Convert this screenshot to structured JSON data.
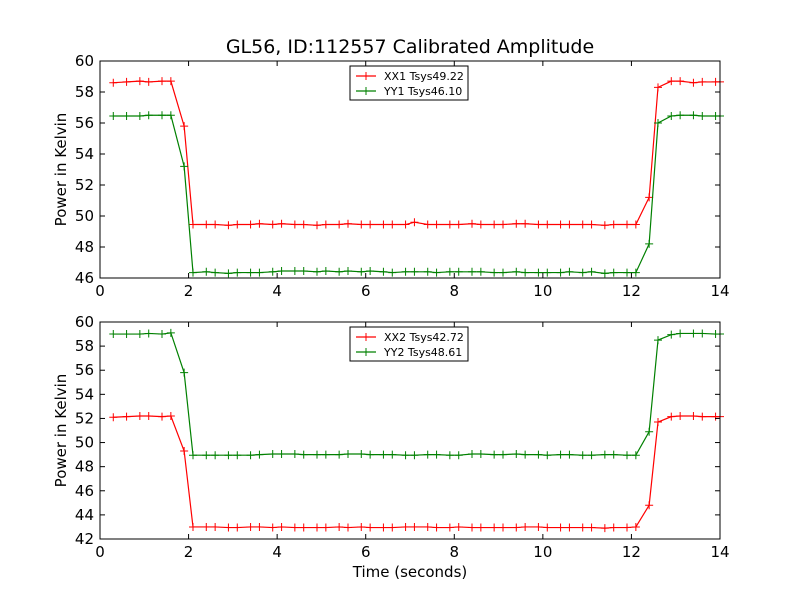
{
  "figure_title": "GL56, ID:112557 Calibrated Amplitude",
  "chart_data": [
    {
      "type": "line",
      "title": "GL56, ID:112557 Calibrated Amplitude",
      "xlabel": "",
      "ylabel": "Power in Kelvin",
      "xlim": [
        0,
        14
      ],
      "ylim": [
        46,
        60
      ],
      "xticks": [
        "0",
        "2",
        "4",
        "6",
        "8",
        "10",
        "12",
        "14"
      ],
      "yticks": [
        "46",
        "48",
        "50",
        "52",
        "54",
        "56",
        "58",
        "60"
      ],
      "grid": false,
      "legend_position": "upper-center",
      "x": [
        0.3,
        0.6,
        0.9,
        1.1,
        1.4,
        1.6,
        1.9,
        2.1,
        2.4,
        2.6,
        2.9,
        3.1,
        3.4,
        3.6,
        3.9,
        4.1,
        4.4,
        4.6,
        4.9,
        5.1,
        5.4,
        5.6,
        5.9,
        6.1,
        6.4,
        6.6,
        6.9,
        7.1,
        7.4,
        7.6,
        7.9,
        8.1,
        8.4,
        8.6,
        8.9,
        9.1,
        9.4,
        9.6,
        9.9,
        10.1,
        10.4,
        10.6,
        10.9,
        11.1,
        11.4,
        11.6,
        11.9,
        12.1,
        12.4,
        12.6,
        12.9,
        13.1,
        13.4,
        13.6,
        13.9,
        14.0
      ],
      "series": [
        {
          "name": "XX1 Tsys49.22",
          "color": "#ff0000",
          "values": [
            58.6,
            58.65,
            58.7,
            58.65,
            58.7,
            58.7,
            55.8,
            49.45,
            49.45,
            49.45,
            49.4,
            49.45,
            49.45,
            49.5,
            49.45,
            49.5,
            49.45,
            49.45,
            49.4,
            49.45,
            49.45,
            49.5,
            49.45,
            49.45,
            49.45,
            49.45,
            49.45,
            49.6,
            49.45,
            49.45,
            49.45,
            49.45,
            49.5,
            49.45,
            49.45,
            49.45,
            49.5,
            49.5,
            49.45,
            49.45,
            49.45,
            49.45,
            49.45,
            49.45,
            49.4,
            49.45,
            49.45,
            49.45,
            51.2,
            58.3,
            58.7,
            58.7,
            58.6,
            58.65,
            58.65,
            58.65
          ]
        },
        {
          "name": "YY1 Tsys46.10",
          "color": "#008000",
          "values": [
            56.45,
            56.45,
            56.45,
            56.5,
            56.5,
            56.5,
            53.2,
            46.35,
            46.4,
            46.35,
            46.3,
            46.35,
            46.35,
            46.35,
            46.4,
            46.45,
            46.45,
            46.45,
            46.4,
            46.45,
            46.4,
            46.45,
            46.4,
            46.45,
            46.4,
            46.35,
            46.4,
            46.4,
            46.4,
            46.35,
            46.4,
            46.4,
            46.4,
            46.4,
            46.35,
            46.35,
            46.4,
            46.35,
            46.35,
            46.35,
            46.35,
            46.4,
            46.35,
            46.4,
            46.3,
            46.35,
            46.35,
            46.35,
            48.2,
            56.0,
            56.45,
            56.5,
            56.5,
            56.45,
            56.45,
            56.45
          ]
        }
      ]
    },
    {
      "type": "line",
      "title": "",
      "xlabel": "Time (seconds)",
      "ylabel": "Power in Kelvin",
      "xlim": [
        0,
        14
      ],
      "ylim": [
        42,
        60
      ],
      "xticks": [
        "0",
        "2",
        "4",
        "6",
        "8",
        "10",
        "12",
        "14"
      ],
      "yticks": [
        "42",
        "44",
        "46",
        "48",
        "50",
        "52",
        "54",
        "56",
        "58",
        "60"
      ],
      "grid": false,
      "legend_position": "upper-center",
      "x": [
        0.3,
        0.6,
        0.9,
        1.1,
        1.4,
        1.6,
        1.9,
        2.1,
        2.4,
        2.6,
        2.9,
        3.1,
        3.4,
        3.6,
        3.9,
        4.1,
        4.4,
        4.6,
        4.9,
        5.1,
        5.4,
        5.6,
        5.9,
        6.1,
        6.4,
        6.6,
        6.9,
        7.1,
        7.4,
        7.6,
        7.9,
        8.1,
        8.4,
        8.6,
        8.9,
        9.1,
        9.4,
        9.6,
        9.9,
        10.1,
        10.4,
        10.6,
        10.9,
        11.1,
        11.4,
        11.6,
        11.9,
        12.1,
        12.4,
        12.6,
        12.9,
        13.1,
        13.4,
        13.6,
        13.9,
        14.0
      ],
      "series": [
        {
          "name": "XX2 Tsys42.72",
          "color": "#ff0000",
          "values": [
            52.1,
            52.15,
            52.2,
            52.2,
            52.15,
            52.2,
            49.3,
            43.0,
            43.0,
            43.0,
            42.95,
            42.95,
            43.0,
            43.0,
            42.95,
            43.0,
            42.95,
            42.95,
            42.95,
            42.95,
            43.0,
            42.95,
            43.0,
            42.95,
            42.95,
            42.95,
            43.0,
            43.0,
            43.0,
            42.95,
            42.95,
            43.0,
            42.95,
            42.95,
            42.95,
            42.95,
            42.95,
            43.0,
            43.0,
            42.95,
            42.95,
            42.95,
            42.95,
            42.95,
            42.9,
            42.95,
            42.95,
            43.0,
            44.8,
            51.7,
            52.15,
            52.2,
            52.2,
            52.15,
            52.15,
            52.15
          ]
        },
        {
          "name": "YY2 Tsys48.61",
          "color": "#008000",
          "values": [
            59.0,
            59.0,
            59.0,
            59.05,
            59.0,
            59.1,
            55.8,
            48.95,
            48.95,
            48.95,
            48.95,
            48.95,
            48.95,
            49.0,
            49.05,
            49.05,
            49.05,
            49.0,
            49.0,
            49.0,
            49.0,
            49.05,
            49.05,
            49.0,
            49.0,
            49.0,
            48.95,
            48.95,
            49.0,
            49.0,
            48.95,
            48.95,
            49.05,
            49.05,
            49.0,
            49.0,
            49.05,
            49.0,
            49.0,
            48.95,
            49.0,
            49.0,
            48.95,
            48.95,
            49.0,
            49.0,
            48.95,
            48.95,
            50.9,
            58.5,
            58.95,
            59.05,
            59.05,
            59.05,
            59.0,
            59.0
          ]
        }
      ]
    }
  ]
}
